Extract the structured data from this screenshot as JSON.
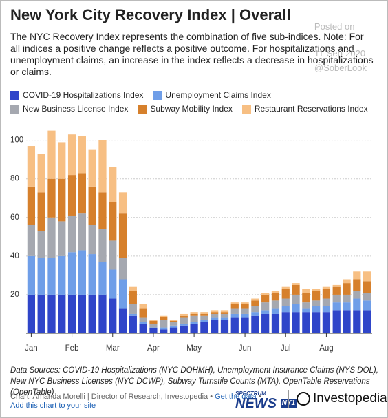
{
  "chart_data": {
    "type": "stacked_bar",
    "title": "New York City Recovery Index | Overall",
    "subtitle": "The NYC Recovery Index represents the combination of five sub-indices. Note: For all indices a positive change reflects a positive outcome. For hospitalizations and unemployment claims, an increase in the index reflects a decrease in hospitalizations or claims.",
    "categories": [
      "Jan",
      null,
      null,
      null,
      "Feb",
      null,
      null,
      null,
      "Mar",
      null,
      null,
      null,
      "Apr",
      null,
      null,
      null,
      "May",
      null,
      null,
      null,
      null,
      "Jun",
      null,
      null,
      null,
      "Jul",
      null,
      null,
      null,
      "Aug",
      null,
      null,
      null,
      null
    ],
    "series": [
      {
        "name": "COVID-19 Hospitalizations Index",
        "color": "#2f45c9",
        "values": [
          20,
          20,
          20,
          20,
          20,
          20,
          20,
          20,
          18,
          13,
          9,
          5,
          2.5,
          2,
          3,
          4,
          5,
          6,
          7,
          7,
          8,
          8,
          9,
          10,
          10,
          11,
          11,
          11,
          11,
          11,
          12,
          12,
          12,
          12
        ]
      },
      {
        "name": "Unemployment Claims Index",
        "color": "#6f9ee8",
        "values": [
          20,
          19,
          19,
          20,
          22,
          23,
          21,
          17,
          15,
          15,
          1,
          1,
          0.5,
          1,
          1,
          1,
          1,
          1,
          1,
          1,
          2,
          2,
          2,
          2,
          3,
          3,
          4,
          2,
          3,
          3,
          4,
          4,
          6,
          5
        ]
      },
      {
        "name": "New Business License Index",
        "color": "#a5a8b0",
        "values": [
          16,
          14,
          21,
          18,
          19,
          19,
          15,
          17,
          15,
          11,
          5,
          2,
          2,
          4,
          2,
          3,
          3,
          2,
          2,
          2,
          3,
          3,
          3,
          4,
          4,
          4,
          5,
          3,
          3,
          4,
          4,
          4,
          4,
          4
        ]
      },
      {
        "name": "Subway Mobility Index",
        "color": "#d6802c",
        "values": [
          20,
          20,
          20,
          22,
          21,
          21,
          20,
          19,
          20,
          23,
          7,
          5,
          1.5,
          1.5,
          0.5,
          1,
          1,
          1,
          1,
          1,
          2,
          2,
          3,
          4,
          4,
          5,
          5,
          5,
          5,
          5,
          4,
          6,
          6,
          6
        ]
      },
      {
        "name": "Restaurant Reservations Index",
        "color": "#f7bf83",
        "values": [
          21,
          20,
          25,
          19,
          21,
          19,
          19,
          27,
          18,
          11,
          2,
          2,
          0.5,
          0.5,
          0.5,
          1,
          1,
          1,
          1,
          1,
          1,
          1,
          1,
          1,
          1,
          1,
          1,
          2,
          1,
          1,
          1,
          2,
          4,
          5
        ]
      }
    ],
    "ylim": [
      0,
      107
    ],
    "yticks": [
      20,
      40,
      60,
      80,
      100
    ],
    "grid": true,
    "note": "Data Sources: COVID-19 Hospitalizations (NYC DOHMH), Unemployment Insurance Claims (NYS DOL), New NYC Business Licenses (NYC DCWP), Subway Turnstile Counts (MTA), OpenTable Reservations (OpenTable)",
    "credit": "Chart: Amanda Morelli | Director of Research, Investopedia",
    "get_data": "Get the data",
    "add_chart": "Add this chart to your site",
    "logo_spectrum": "SPECTRUM",
    "logo_news": "NEWS",
    "logo_ny1": "NY1",
    "logo_investopedia": "Investopedia",
    "watermark": [
      "Posted on",
      "11-Sep-2020",
      "@SoberLook"
    ]
  }
}
